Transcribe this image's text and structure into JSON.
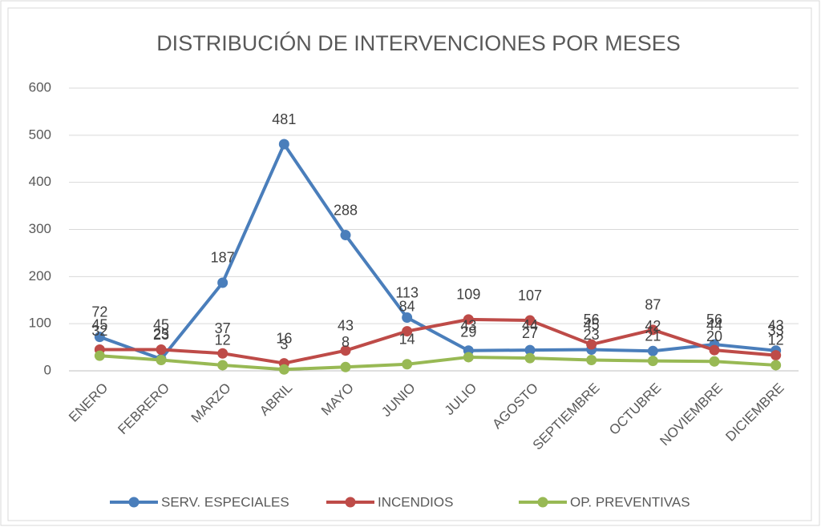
{
  "chart_data": {
    "type": "line",
    "title": "DISTRIBUCIÓN DE INTERVENCIONES POR MESES",
    "categories": [
      "ENERO",
      "FEBRERO",
      "MARZO",
      "ABRIL",
      "MAYO",
      "JUNIO",
      "JULIO",
      "AGOSTO",
      "SEPTIEMBRE",
      "OCTUBRE",
      "NOVIEMBRE",
      "DICIEMBRE"
    ],
    "series": [
      {
        "name": "SERV. ESPECIALES",
        "color": "#4a7ebb",
        "values": [
          72,
          25,
          187,
          481,
          288,
          113,
          43,
          44,
          45,
          42,
          56,
          43
        ]
      },
      {
        "name": "INCENDIOS",
        "color": "#be4b48",
        "values": [
          45,
          45,
          37,
          16,
          43,
          84,
          109,
          107,
          56,
          87,
          44,
          33
        ]
      },
      {
        "name": "OP. PREVENTIVAS",
        "color": "#98b954",
        "values": [
          32,
          23,
          12,
          3,
          8,
          14,
          29,
          27,
          23,
          21,
          20,
          12
        ]
      }
    ],
    "ylim": [
      0,
      600
    ],
    "yticks": [
      0,
      100,
      200,
      300,
      400,
      500,
      600
    ],
    "grid": true,
    "legend": "bottom"
  }
}
